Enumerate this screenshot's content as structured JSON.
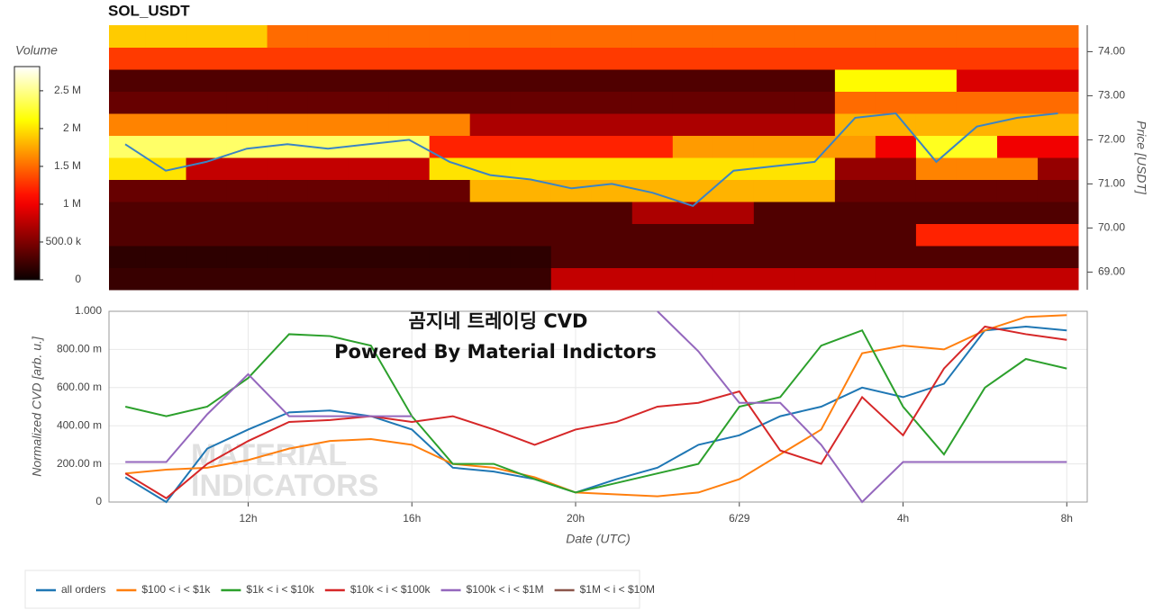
{
  "chart_data": [
    {
      "type": "heatmap",
      "title": "SOL_USDT",
      "colorbar_title": "Volume",
      "colormap": "hot",
      "ylabel": "Price [USDT]",
      "xlim": [
        8.6,
        32.5
      ],
      "ylim": [
        68.6,
        74.6
      ],
      "yticks": [
        {
          "value": 69,
          "label": "69.00"
        },
        {
          "value": 70,
          "label": "70.00"
        },
        {
          "value": 71,
          "label": "71.00"
        },
        {
          "value": 72,
          "label": "72.00"
        },
        {
          "value": 73,
          "label": "73.00"
        },
        {
          "value": 74,
          "label": "74.00"
        }
      ],
      "zlim": [
        0,
        2820000
      ],
      "zticks": [
        0,
        {
          "value": 500000,
          "label": "500.0 k"
        },
        {
          "value": 1000000,
          "label": "1 M"
        },
        {
          "value": 1500000,
          "label": "1.5 M"
        },
        {
          "value": 2000000,
          "label": "2 M"
        },
        {
          "value": 2500000,
          "label": "2.5 M"
        }
      ],
      "x_edges": [
        8.6,
        9.5,
        10.5,
        11.5,
        12.5,
        13.5,
        14.5,
        15.5,
        16.5,
        17.5,
        18.5,
        19.5,
        20.5,
        21.5,
        22.5,
        23.5,
        24.5,
        25.5,
        26.5,
        27.5,
        28.5,
        29.5,
        30.5,
        31.5,
        32.5
      ],
      "y_edges": [
        68.6,
        69.1,
        69.6,
        70.1,
        70.6,
        71.1,
        71.6,
        72.1,
        72.6,
        73.1,
        73.6,
        74.1,
        74.6
      ],
      "z": [
        [
          200000,
          200000,
          200000,
          200000,
          200000,
          200000,
          200000,
          200000,
          200000,
          200000,
          200000,
          800000,
          800000,
          800000,
          800000,
          800000,
          800000,
          800000,
          800000,
          800000,
          800000,
          800000,
          800000,
          800000
        ],
        [
          150000,
          150000,
          150000,
          150000,
          150000,
          150000,
          150000,
          150000,
          150000,
          150000,
          150000,
          300000,
          300000,
          300000,
          300000,
          300000,
          300000,
          300000,
          300000,
          300000,
          300000,
          300000,
          300000,
          300000
        ],
        [
          300000,
          300000,
          300000,
          300000,
          300000,
          300000,
          300000,
          300000,
          300000,
          300000,
          300000,
          300000,
          300000,
          300000,
          300000,
          300000,
          300000,
          300000,
          300000,
          300000,
          1200000,
          1200000,
          1200000,
          1200000
        ],
        [
          300000,
          300000,
          300000,
          300000,
          300000,
          300000,
          300000,
          300000,
          300000,
          300000,
          300000,
          300000,
          300000,
          700000,
          700000,
          700000,
          300000,
          300000,
          300000,
          300000,
          300000,
          300000,
          300000,
          300000
        ],
        [
          400000,
          400000,
          400000,
          400000,
          400000,
          400000,
          400000,
          400000,
          400000,
          1800000,
          1800000,
          1800000,
          1800000,
          1800000,
          1800000,
          1800000,
          1800000,
          1800000,
          400000,
          400000,
          400000,
          400000,
          400000,
          400000
        ],
        [
          2000000,
          2000000,
          800000,
          800000,
          800000,
          800000,
          800000,
          800000,
          2000000,
          2000000,
          2000000,
          2000000,
          2000000,
          2000000,
          2000000,
          2000000,
          2000000,
          2000000,
          600000,
          600000,
          1600000,
          1600000,
          1600000,
          600000
        ],
        [
          2400000,
          2400000,
          2400000,
          2400000,
          2400000,
          2400000,
          2400000,
          2400000,
          1200000,
          1200000,
          1200000,
          1200000,
          1200000,
          1200000,
          1700000,
          1700000,
          1700000,
          1700000,
          1700000,
          1000000,
          2200000,
          2200000,
          1000000,
          1000000
        ],
        [
          1600000,
          1600000,
          1600000,
          1600000,
          1600000,
          1600000,
          1600000,
          1600000,
          1600000,
          700000,
          700000,
          700000,
          700000,
          700000,
          700000,
          700000,
          700000,
          700000,
          1800000,
          1800000,
          1800000,
          1800000,
          1800000,
          1800000
        ],
        [
          400000,
          400000,
          400000,
          400000,
          400000,
          400000,
          400000,
          400000,
          400000,
          400000,
          400000,
          400000,
          400000,
          400000,
          400000,
          400000,
          400000,
          400000,
          1500000,
          1500000,
          1500000,
          1500000,
          1500000,
          1500000
        ],
        [
          300000,
          300000,
          300000,
          300000,
          300000,
          300000,
          300000,
          300000,
          300000,
          300000,
          300000,
          300000,
          300000,
          300000,
          300000,
          300000,
          300000,
          300000,
          2100000,
          2100000,
          2100000,
          900000,
          900000,
          900000
        ],
        [
          1300000,
          1300000,
          1300000,
          1300000,
          1300000,
          1300000,
          1300000,
          1300000,
          1300000,
          1300000,
          1300000,
          1300000,
          1300000,
          1300000,
          1300000,
          1300000,
          1300000,
          1300000,
          1300000,
          1300000,
          1300000,
          1300000,
          1300000,
          1300000
        ],
        [
          1900000,
          1900000,
          1900000,
          1900000,
          1500000,
          1500000,
          1500000,
          1500000,
          1500000,
          1500000,
          1500000,
          1500000,
          1500000,
          1500000,
          1500000,
          1500000,
          1500000,
          1500000,
          1500000,
          1500000,
          1500000,
          1500000,
          1500000,
          1500000
        ]
      ],
      "price_line": {
        "color": "#3b84c4",
        "x": [
          9,
          10,
          11,
          12,
          13,
          14,
          15,
          16,
          17,
          18,
          19,
          20,
          21,
          22,
          23,
          24,
          25,
          26,
          27,
          28,
          29,
          30,
          31,
          32
        ],
        "values": [
          71.9,
          71.3,
          71.5,
          71.8,
          71.9,
          71.8,
          71.9,
          72.0,
          71.5,
          71.2,
          71.1,
          70.9,
          71.0,
          70.8,
          70.5,
          71.3,
          71.4,
          71.5,
          72.5,
          72.6,
          71.5,
          72.3,
          72.5,
          72.6
        ]
      }
    },
    {
      "type": "line",
      "xlabel": "Date (UTC)",
      "ylabel": "Normalized CVD [arb. u.]",
      "annotations": [
        "곰지네 트레이딩 CVD",
        "Powered By Material Indictors"
      ],
      "watermark": [
        "MATERIAL",
        "INDICATORS"
      ],
      "grid": true,
      "legend": "bottom-left",
      "xlim": [
        8.6,
        32.5
      ],
      "xticks": [
        {
          "value": 12,
          "label": "12h"
        },
        {
          "value": 16,
          "label": "16h"
        },
        {
          "value": 20,
          "label": "20h"
        },
        {
          "value": 24,
          "label": "6/29"
        },
        {
          "value": 28,
          "label": "4h"
        },
        {
          "value": 32,
          "label": "8h"
        }
      ],
      "ylim": [
        0,
        1
      ],
      "yticks": [
        0,
        {
          "value": 0.2,
          "label": "200.00 m"
        },
        {
          "value": 0.4,
          "label": "400.00 m"
        },
        {
          "value": 0.6,
          "label": "600.00 m"
        },
        {
          "value": 0.8,
          "label": "800.00 m"
        },
        {
          "value": 1,
          "label": "1.000"
        }
      ],
      "x": [
        9,
        10,
        11,
        12,
        13,
        14,
        15,
        16,
        17,
        18,
        19,
        20,
        21,
        22,
        23,
        24,
        25,
        26,
        27,
        28,
        29,
        30,
        31,
        32
      ],
      "series": [
        {
          "name": "all orders",
          "color": "#1f77b4",
          "values": [
            0.13,
            0.0,
            0.28,
            0.38,
            0.47,
            0.48,
            0.45,
            0.38,
            0.18,
            0.16,
            0.12,
            0.05,
            0.12,
            0.18,
            0.3,
            0.35,
            0.45,
            0.5,
            0.6,
            0.55,
            0.62,
            0.9,
            0.92,
            0.9
          ]
        },
        {
          "name": "$100 < i < $1k",
          "color": "#ff7f0e",
          "values": [
            0.15,
            0.17,
            0.18,
            0.22,
            0.28,
            0.32,
            0.33,
            0.3,
            0.2,
            0.18,
            0.13,
            0.05,
            0.04,
            0.03,
            0.05,
            0.12,
            0.25,
            0.38,
            0.78,
            0.82,
            0.8,
            0.9,
            0.97,
            0.98
          ]
        },
        {
          "name": "$1k < i < $10k",
          "color": "#2ca02c",
          "values": [
            0.5,
            0.45,
            0.5,
            0.65,
            0.88,
            0.87,
            0.82,
            0.45,
            0.2,
            0.2,
            0.12,
            0.05,
            0.1,
            0.15,
            0.2,
            0.5,
            0.55,
            0.82,
            0.9,
            0.5,
            0.25,
            0.6,
            0.75,
            0.7
          ]
        },
        {
          "name": "$10k < i < $100k",
          "color": "#d62728",
          "values": [
            0.15,
            0.02,
            0.2,
            0.32,
            0.42,
            0.43,
            0.45,
            0.42,
            0.45,
            0.38,
            0.3,
            0.38,
            0.42,
            0.5,
            0.52,
            0.58,
            0.27,
            0.2,
            0.55,
            0.35,
            0.7,
            0.92,
            0.88,
            0.85
          ]
        },
        {
          "name": "$100k < i < $1M",
          "color": "#9467bd",
          "values": [
            0.21,
            0.21,
            0.46,
            0.67,
            0.45,
            0.45,
            0.45,
            0.45,
            null,
            null,
            null,
            null,
            null,
            1.0,
            0.79,
            0.52,
            0.52,
            0.3,
            0,
            0.21,
            0.21,
            0.21,
            0.21,
            0.21
          ]
        },
        {
          "name": "$1M < i < $10M",
          "color": "#8c564b",
          "values": [
            null,
            null,
            null,
            null,
            null,
            null,
            null,
            null,
            null,
            null,
            null,
            null,
            null,
            null,
            null,
            null,
            null,
            null,
            null,
            null,
            null,
            null,
            null,
            null
          ]
        }
      ]
    }
  ]
}
